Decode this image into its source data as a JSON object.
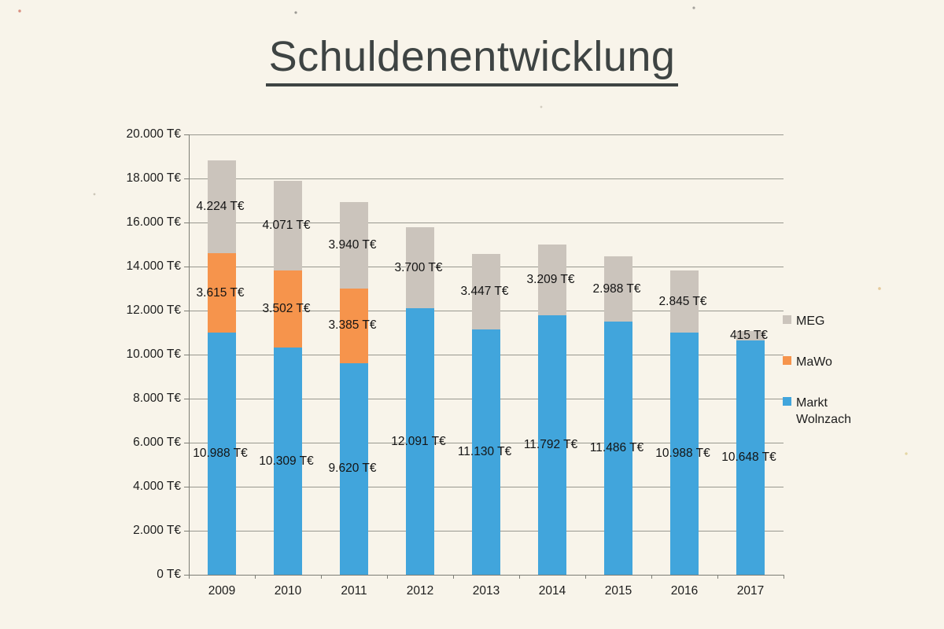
{
  "page": {
    "kind": "scanned presentation slide"
  },
  "chart_data": {
    "type": "bar",
    "stacked": true,
    "title": "Schuldenentwicklung",
    "xlabel": "",
    "ylabel": "",
    "unit": "T€",
    "grid": true,
    "ylim": [
      0,
      20000
    ],
    "ytick_step": 2000,
    "ytick_labels": [
      "0 T€",
      "2.000 T€",
      "4.000 T€",
      "6.000 T€",
      "8.000 T€",
      "10.000 T€",
      "12.000 T€",
      "14.000 T€",
      "16.000 T€",
      "18.000 T€",
      "20.000 T€"
    ],
    "categories": [
      "2009",
      "2010",
      "2011",
      "2012",
      "2013",
      "2014",
      "2015",
      "2016",
      "2017"
    ],
    "series": [
      {
        "name": "Markt Wolnzach",
        "color": "#41A5DC",
        "values": [
          10988,
          10309,
          9620,
          12091,
          11130,
          11792,
          11486,
          10988,
          10648
        ],
        "labels": [
          "10.988 T€",
          "10.309 T€",
          "9.620 T€",
          "12.091 T€",
          "11.130 T€",
          "11.792 T€",
          "11.486 T€",
          "10.988 T€",
          "10.648 T€"
        ]
      },
      {
        "name": "MaWo",
        "color": "#F6944C",
        "values": [
          3615,
          3502,
          3385,
          0,
          0,
          0,
          0,
          0,
          0
        ],
        "labels": [
          "3.615 T€",
          "3.502 T€",
          "3.385 T€",
          "",
          "",
          "",
          "",
          "",
          ""
        ]
      },
      {
        "name": "MEG",
        "color": "#CBC4BC",
        "values": [
          4224,
          4071,
          3940,
          3700,
          3447,
          3209,
          2988,
          2845,
          415
        ],
        "labels": [
          "4.224 T€",
          "4.071 T€",
          "3.940 T€",
          "3.700 T€",
          "3.447 T€",
          "3.209 T€",
          "2.988 T€",
          "2.845 T€",
          "415 T€"
        ]
      }
    ],
    "legend": {
      "position": "right",
      "items": [
        {
          "label": "MEG",
          "color": "#CBC4BC"
        },
        {
          "label": "MaWo",
          "color": "#F6944C"
        },
        {
          "label": "Markt Wolnzach",
          "color": "#41A5DC"
        }
      ]
    }
  },
  "colors": {
    "background": "#F8F4EA",
    "gridline": "#98988F",
    "axis": "#7D7D75",
    "text": "#1C1C1C",
    "title": "#3E4443"
  }
}
